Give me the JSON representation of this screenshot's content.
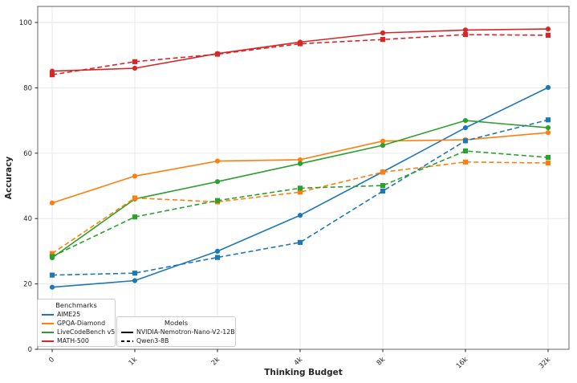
{
  "figure": {
    "xlabel": "Thinking Budget",
    "ylabel": "Accuracy",
    "x_tick_labels": [
      "0",
      "1k",
      "2k",
      "4k",
      "8k",
      "16k",
      "32k"
    ],
    "y_tick_labels": [
      "0",
      "20",
      "40",
      "60",
      "80",
      "100"
    ],
    "y_tick_values": [
      0,
      20,
      40,
      60,
      80,
      100
    ]
  },
  "legends": {
    "benchmarks": {
      "title": "Benchmarks",
      "items": [
        {
          "label": "AIME25",
          "color": "#1f77b4"
        },
        {
          "label": "GPQA-Diamond",
          "color": "#ff7f0e"
        },
        {
          "label": "LiveCodeBench v5",
          "color": "#2ca02c"
        },
        {
          "label": "MATH-500",
          "color": "#d62728"
        }
      ]
    },
    "models": {
      "title": "Models",
      "items": [
        {
          "label": "NVIDIA-Nemotron-Nano-V2-12B",
          "color": "#000000",
          "style": "solid"
        },
        {
          "label": "Qwen3-8B",
          "color": "#000000",
          "style": "dashed"
        }
      ]
    }
  },
  "chart_data": {
    "type": "line",
    "title": "",
    "xlabel": "Thinking Budget",
    "ylabel": "Accuracy",
    "categories": [
      "0",
      "1k",
      "2k",
      "4k",
      "8k",
      "16k",
      "32k"
    ],
    "ylim": [
      0,
      105
    ],
    "grid": true,
    "legend_position": "lower-left",
    "colors": {
      "grid": "#e6e6e6",
      "spine": "#808080",
      "text": "#262626"
    },
    "series": [
      {
        "benchmark": "AIME25",
        "model": "NVIDIA-Nemotron-Nano-V2-12B",
        "color": "#1f77b4",
        "line": "solid",
        "marker": "circle",
        "values": [
          19.0,
          21.0,
          30.0,
          41.0,
          54.3,
          67.8,
          80.1
        ]
      },
      {
        "benchmark": "GPQA-Diamond",
        "model": "NVIDIA-Nemotron-Nano-V2-12B",
        "color": "#ff7f0e",
        "line": "solid",
        "marker": "circle",
        "values": [
          44.8,
          53.0,
          57.6,
          58.0,
          63.7,
          64.1,
          66.3
        ]
      },
      {
        "benchmark": "LiveCodeBench v5",
        "model": "NVIDIA-Nemotron-Nano-V2-12B",
        "color": "#2ca02c",
        "line": "solid",
        "marker": "circle",
        "values": [
          28.0,
          46.0,
          51.3,
          56.8,
          62.4,
          70.0,
          67.8
        ]
      },
      {
        "benchmark": "MATH-500",
        "model": "NVIDIA-Nemotron-Nano-V2-12B",
        "color": "#d62728",
        "line": "solid",
        "marker": "circle",
        "values": [
          85.1,
          86.0,
          90.5,
          94.0,
          96.8,
          97.7,
          98.0
        ]
      },
      {
        "benchmark": "AIME25",
        "model": "Qwen3-8B",
        "color": "#1f77b4",
        "line": "dashed",
        "marker": "square",
        "values": [
          22.7,
          23.3,
          28.1,
          32.7,
          48.4,
          63.8,
          70.2
        ]
      },
      {
        "benchmark": "GPQA-Diamond",
        "model": "Qwen3-8B",
        "color": "#ff7f0e",
        "line": "dashed",
        "marker": "square",
        "values": [
          29.3,
          46.3,
          45.1,
          48.1,
          54.2,
          57.3,
          57.0
        ]
      },
      {
        "benchmark": "LiveCodeBench v5",
        "model": "Qwen3-8B",
        "color": "#2ca02c",
        "line": "dashed",
        "marker": "square",
        "values": [
          28.4,
          40.5,
          45.5,
          49.3,
          50.1,
          60.7,
          58.7
        ]
      },
      {
        "benchmark": "MATH-500",
        "model": "Qwen3-8B",
        "color": "#d62728",
        "line": "dashed",
        "marker": "square",
        "values": [
          84.0,
          88.0,
          90.3,
          93.5,
          94.8,
          96.3,
          96.1
        ]
      }
    ]
  }
}
